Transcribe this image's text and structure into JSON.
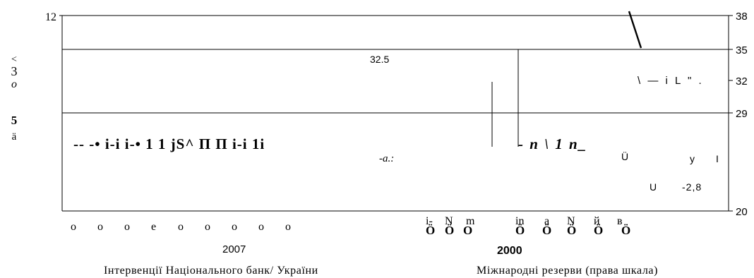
{
  "chart_data": {
    "type": "bar",
    "left_axis": {
      "top_label": "12",
      "side_marks": [
        "<",
        "3",
        "o",
        "5",
        "ä"
      ]
    },
    "right_axis": {
      "ticks": [
        {
          "label": "38",
          "value": 38
        },
        {
          "label": "35",
          "value": 35
        },
        {
          "label": "32",
          "value": 32
        },
        {
          "label": "29",
          "value": 29
        },
        {
          "label": "20",
          "value": 20
        }
      ]
    },
    "gridlines": [
      35,
      29
    ],
    "annotations": {
      "value_top": "32.5",
      "value_right": "-2,8",
      "left_series_text": "-- -• i-i i-• 1 1 jS^ П П i-i 1i",
      "left_series_suffix": "-a.:",
      "right_series_text": "- n \\ 1 n_",
      "right_fragments": [
        "\\ — i L \" .",
        "Ü",
        "y",
        "I",
        "U"
      ]
    },
    "x_ticks_left": [
      "o",
      "o",
      "o",
      "e",
      "o",
      "o",
      "o",
      "o",
      "o"
    ],
    "x_ticks_mid_top": [
      "i-",
      "N",
      "m",
      "in",
      "a",
      "N",
      "й",
      "в"
    ],
    "x_ticks_mid_bottom": [
      "Ö",
      "Ö",
      "O",
      "Ö",
      "Ö",
      "Ö",
      "Ö",
      "Ö"
    ],
    "year_left": "2007",
    "year_right": "2000",
    "legend": {
      "left": "Інтервенції Національного банк/ України",
      "right": "Міжнародні резерви (права шкала)"
    }
  }
}
